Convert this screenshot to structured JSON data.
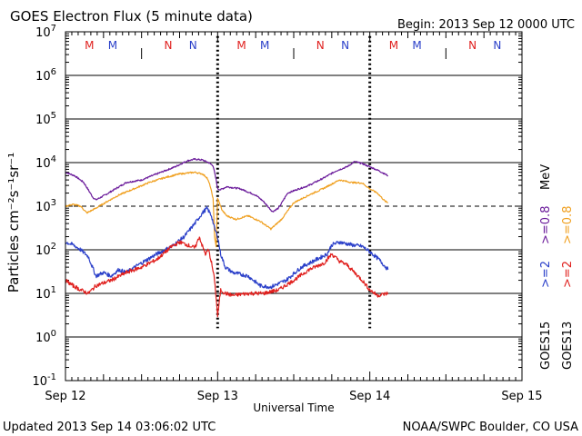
{
  "chart_data": {
    "type": "line",
    "title": "GOES Electron Flux (5 minute data)",
    "begin_label": "Begin: 2013 Sep 12 0000 UTC",
    "xlabel": "Universal Time",
    "ylabel": "Particles cm⁻²s⁻¹sr⁻¹",
    "footer_left": "Updated 2013 Sep 14 03:06:02 UTC",
    "footer_right": "NOAA/SWPC Boulder, CO USA",
    "x_unit": "days since 2013 Sep 12 0000 UTC",
    "xlim": [
      0,
      3
    ],
    "ylog_range": [
      -1,
      7
    ],
    "x_ticks": [
      {
        "value": 0,
        "label": "Sep 12"
      },
      {
        "value": 1,
        "label": "Sep 13"
      },
      {
        "value": 2,
        "label": "Sep 14"
      },
      {
        "value": 3,
        "label": "Sep 15"
      }
    ],
    "y_ticks": [
      {
        "exp": -1,
        "base": "10",
        "sup": "-1"
      },
      {
        "exp": 0,
        "base": "10",
        "sup": "0"
      },
      {
        "exp": 1,
        "base": "10",
        "sup": "1"
      },
      {
        "exp": 2,
        "base": "10",
        "sup": "2"
      },
      {
        "exp": 3,
        "base": "10",
        "sup": "3"
      },
      {
        "exp": 4,
        "base": "10",
        "sup": "4"
      },
      {
        "exp": 5,
        "base": "10",
        "sup": "5"
      },
      {
        "exp": 6,
        "base": "10",
        "sup": "6"
      },
      {
        "exp": 7,
        "base": "10",
        "sup": "7"
      }
    ],
    "gridlines_solid_log": [
      0,
      1,
      2,
      4,
      5,
      6
    ],
    "threshold_dashed_log": 3,
    "day_dividers_log_range": [
      0.2,
      6.9
    ],
    "noon_markers": [
      {
        "x": 0.5,
        "log": 6.5
      },
      {
        "x": 1.5,
        "log": 6.5
      },
      {
        "x": 2.5,
        "log": 6.5
      }
    ],
    "mn_labels": [
      {
        "text": "M",
        "x": 0.157,
        "color": "#e0201e",
        "name": "mark-m-goes13"
      },
      {
        "text": "M",
        "x": 0.31,
        "color": "#2a3fc9",
        "name": "mark-m-goes15"
      },
      {
        "text": "N",
        "x": 0.675,
        "color": "#e0201e",
        "name": "mark-n-goes13"
      },
      {
        "text": "N",
        "x": 0.838,
        "color": "#2a3fc9",
        "name": "mark-n-goes15"
      },
      {
        "text": "M",
        "x": 1.157,
        "color": "#e0201e",
        "name": "mark-m-goes13"
      },
      {
        "text": "M",
        "x": 1.31,
        "color": "#2a3fc9",
        "name": "mark-m-goes15"
      },
      {
        "text": "N",
        "x": 1.675,
        "color": "#e0201e",
        "name": "mark-n-goes13"
      },
      {
        "text": "N",
        "x": 1.838,
        "color": "#2a3fc9",
        "name": "mark-n-goes15"
      },
      {
        "text": "M",
        "x": 2.157,
        "color": "#e0201e",
        "name": "mark-m-goes13"
      },
      {
        "text": "M",
        "x": 2.31,
        "color": "#2a3fc9",
        "name": "mark-m-goes15"
      },
      {
        "text": "N",
        "x": 2.675,
        "color": "#e0201e",
        "name": "mark-n-goes13"
      },
      {
        "text": "N",
        "x": 2.838,
        "color": "#2a3fc9",
        "name": "mark-n-goes15"
      }
    ],
    "legend": [
      {
        "satellite": "GOES15",
        "energies": [
          {
            "text": ">=2",
            "color": "#2a3fc9"
          },
          {
            "text": ">=0.8",
            "color": "#6a1a9a"
          }
        ],
        "unit": "MeV"
      },
      {
        "satellite": "GOES13",
        "energies": [
          {
            "text": ">=2",
            "color": "#e0201e"
          },
          {
            "text": ">=0.8",
            "color": "#f0a020"
          }
        ],
        "unit": "MeV"
      }
    ],
    "series": [
      {
        "name": "GOES15 >=0.8 MeV",
        "color": "#6a1a9a",
        "x": [
          0,
          0.06,
          0.12,
          0.18,
          0.2,
          0.26,
          0.32,
          0.4,
          0.5,
          0.6,
          0.72,
          0.8,
          0.85,
          0.9,
          0.94,
          0.97,
          0.99,
          1.0,
          1.02,
          1.06,
          1.15,
          1.25,
          1.3,
          1.36,
          1.4,
          1.46,
          1.52,
          1.6,
          1.7,
          1.78,
          1.85,
          1.9,
          1.95,
          2.0,
          2.06,
          2.12
        ],
        "y": [
          6000,
          5000,
          3500,
          1600,
          1400,
          1800,
          2400,
          3500,
          4000,
          5500,
          8000,
          11000,
          12000,
          11500,
          10000,
          8500,
          4000,
          2500,
          2400,
          2800,
          2500,
          1800,
          1300,
          750,
          900,
          2000,
          2400,
          3000,
          4500,
          6500,
          8000,
          10500,
          9500,
          8000,
          6500,
          5000
        ]
      },
      {
        "name": "GOES13 >=0.8 MeV",
        "color": "#f0a020",
        "x": [
          0,
          0.05,
          0.1,
          0.14,
          0.2,
          0.26,
          0.35,
          0.45,
          0.55,
          0.65,
          0.75,
          0.85,
          0.9,
          0.93,
          0.95,
          0.97,
          0.98,
          0.99,
          1.0,
          1.03,
          1.06,
          1.12,
          1.2,
          1.28,
          1.35,
          1.42,
          1.5,
          1.6,
          1.7,
          1.8,
          1.88,
          1.95,
          2.0,
          2.05,
          2.1,
          2.12
        ],
        "y": [
          1000,
          1100,
          1000,
          700,
          900,
          1200,
          1800,
          2500,
          3500,
          4500,
          5500,
          6000,
          5500,
          4500,
          3000,
          1500,
          200,
          120,
          1500,
          800,
          600,
          500,
          600,
          450,
          300,
          500,
          1200,
          1800,
          2600,
          4000,
          3500,
          3400,
          2500,
          2000,
          1300,
          1200
        ]
      },
      {
        "name": "GOES15 >=2 MeV",
        "color": "#2a3fc9",
        "x": [
          0,
          0.05,
          0.1,
          0.15,
          0.2,
          0.25,
          0.3,
          0.35,
          0.4,
          0.5,
          0.6,
          0.7,
          0.78,
          0.85,
          0.9,
          0.93,
          0.96,
          0.98,
          0.99,
          1.0,
          1.02,
          1.05,
          1.1,
          1.2,
          1.28,
          1.35,
          1.45,
          1.55,
          1.65,
          1.72,
          1.75,
          1.8,
          1.88,
          1.95,
          2.0,
          2.06,
          2.12
        ],
        "y": [
          150,
          130,
          100,
          70,
          25,
          30,
          25,
          35,
          30,
          50,
          80,
          120,
          200,
          400,
          700,
          900,
          600,
          300,
          250,
          200,
          80,
          40,
          30,
          25,
          15,
          14,
          20,
          40,
          60,
          80,
          130,
          150,
          130,
          120,
          90,
          60,
          35
        ]
      },
      {
        "name": "GOES13 >=2 MeV",
        "color": "#e0201e",
        "x": [
          0,
          0.05,
          0.1,
          0.15,
          0.2,
          0.3,
          0.4,
          0.5,
          0.6,
          0.7,
          0.75,
          0.8,
          0.85,
          0.88,
          0.9,
          0.92,
          0.94,
          0.96,
          0.98,
          0.99,
          1.0,
          1.02,
          1.05,
          1.1,
          1.2,
          1.3,
          1.4,
          1.5,
          1.6,
          1.7,
          1.75,
          1.8,
          1.85,
          1.9,
          1.95,
          2.0,
          2.05,
          2.12
        ],
        "y": [
          20,
          15,
          12,
          10,
          15,
          20,
          30,
          40,
          60,
          120,
          150,
          130,
          110,
          200,
          120,
          80,
          100,
          50,
          20,
          8,
          3,
          12,
          10,
          9,
          10,
          10,
          12,
          20,
          35,
          50,
          80,
          55,
          45,
          30,
          20,
          12,
          9,
          10
        ]
      }
    ]
  }
}
